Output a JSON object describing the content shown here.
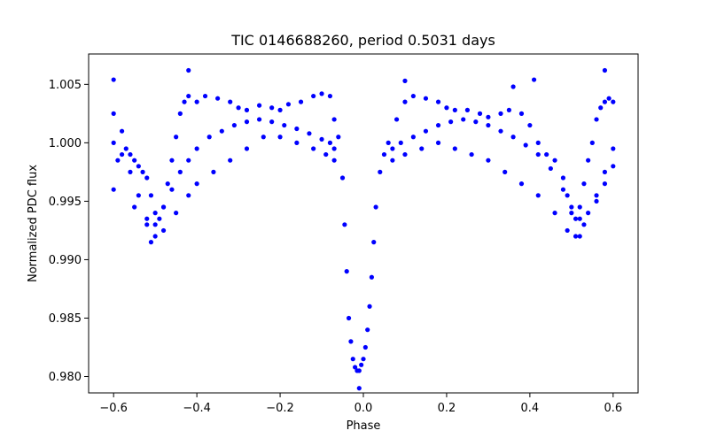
{
  "chart_data": {
    "type": "scatter",
    "title": "TIC 0146688260, period 0.5031 days",
    "xlabel": "Phase",
    "ylabel": "Normalized PDC flux",
    "xlim": [
      -0.66,
      0.66
    ],
    "ylim": [
      0.9786,
      1.0076
    ],
    "xticks": [
      -0.6,
      -0.4,
      -0.2,
      0.0,
      0.2,
      0.4,
      0.6
    ],
    "xtick_labels": [
      "−0.6",
      "−0.4",
      "−0.2",
      "0.0",
      "0.2",
      "0.4",
      "0.6"
    ],
    "yticks": [
      0.98,
      0.985,
      0.99,
      0.995,
      1.0,
      1.005
    ],
    "ytick_labels": [
      "0.980",
      "0.985",
      "0.990",
      "0.995",
      "1.000",
      "1.005"
    ],
    "grid": false,
    "legend": "none",
    "marker_color": "#0000ff",
    "series": [
      {
        "points": [
          [
            -0.6,
            1.0025
          ],
          [
            -0.59,
            0.9985
          ],
          [
            -0.58,
            1.001
          ],
          [
            -0.57,
            0.9995
          ],
          [
            -0.56,
            0.999
          ],
          [
            -0.55,
            0.9985
          ],
          [
            -0.54,
            0.998
          ],
          [
            -0.53,
            0.9975
          ],
          [
            -0.52,
            0.997
          ],
          [
            -0.51,
            0.9955
          ],
          [
            -0.5,
            0.994
          ],
          [
            -0.49,
            0.9935
          ],
          [
            -0.48,
            0.9945
          ],
          [
            -0.47,
            0.9965
          ],
          [
            -0.46,
            0.9985
          ],
          [
            -0.45,
            1.0005
          ],
          [
            -0.44,
            1.0025
          ],
          [
            -0.43,
            1.0035
          ],
          [
            -0.42,
            1.004
          ],
          [
            -0.4,
            1.0035
          ],
          [
            -0.38,
            1.004
          ],
          [
            -0.35,
            1.0038
          ],
          [
            -0.32,
            1.0035
          ],
          [
            -0.3,
            1.003
          ],
          [
            -0.28,
            1.0028
          ],
          [
            -0.25,
            1.0032
          ],
          [
            -0.22,
            1.003
          ],
          [
            -0.2,
            1.0028
          ],
          [
            -0.18,
            1.0033
          ],
          [
            -0.15,
            1.0035
          ],
          [
            -0.12,
            1.004
          ],
          [
            -0.1,
            1.0042
          ],
          [
            -0.08,
            1.004
          ],
          [
            -0.07,
            1.002
          ],
          [
            -0.06,
            1.0005
          ],
          [
            -0.05,
            0.997
          ],
          [
            -0.045,
            0.993
          ],
          [
            -0.04,
            0.989
          ],
          [
            -0.035,
            0.985
          ],
          [
            -0.03,
            0.983
          ],
          [
            -0.025,
            0.9815
          ],
          [
            -0.02,
            0.9808
          ],
          [
            -0.015,
            0.9805
          ],
          [
            -0.01,
            0.9805
          ],
          [
            -0.005,
            0.981
          ],
          [
            0.0,
            0.9815
          ],
          [
            0.005,
            0.9825
          ],
          [
            0.01,
            0.984
          ],
          [
            0.015,
            0.986
          ],
          [
            0.02,
            0.9885
          ],
          [
            0.025,
            0.9915
          ],
          [
            0.03,
            0.9945
          ],
          [
            0.04,
            0.9975
          ],
          [
            0.05,
            0.999
          ],
          [
            0.06,
            1.0
          ],
          [
            0.08,
            1.002
          ],
          [
            0.1,
            1.0035
          ],
          [
            0.12,
            1.004
          ],
          [
            0.15,
            1.0038
          ],
          [
            0.18,
            1.0035
          ],
          [
            0.2,
            1.003
          ],
          [
            0.22,
            1.0028
          ],
          [
            0.25,
            1.0028
          ],
          [
            0.28,
            1.0025
          ],
          [
            0.3,
            1.0022
          ],
          [
            0.33,
            1.0025
          ],
          [
            0.35,
            1.0028
          ],
          [
            0.38,
            1.0025
          ],
          [
            0.4,
            1.0015
          ],
          [
            0.42,
            1.0
          ],
          [
            0.44,
            0.999
          ],
          [
            0.46,
            0.9985
          ],
          [
            0.48,
            0.997
          ],
          [
            0.49,
            0.9955
          ],
          [
            0.5,
            0.994
          ],
          [
            0.51,
            0.9935
          ],
          [
            0.52,
            0.9945
          ],
          [
            0.53,
            0.9965
          ],
          [
            0.54,
            0.9985
          ],
          [
            0.55,
            1.0
          ],
          [
            0.56,
            1.002
          ],
          [
            0.57,
            1.003
          ],
          [
            0.58,
            1.0035
          ],
          [
            0.59,
            1.0038
          ],
          [
            0.6,
            1.0035
          ]
        ]
      },
      {
        "points": [
          [
            -0.6,
            1.0
          ],
          [
            -0.58,
            0.999
          ],
          [
            -0.56,
            0.9975
          ],
          [
            -0.54,
            0.9955
          ],
          [
            -0.52,
            0.9935
          ],
          [
            -0.5,
            0.993
          ],
          [
            -0.48,
            0.9945
          ],
          [
            -0.46,
            0.996
          ],
          [
            -0.44,
            0.9975
          ],
          [
            -0.42,
            0.9985
          ],
          [
            -0.4,
            0.9995
          ],
          [
            -0.37,
            1.0005
          ],
          [
            -0.34,
            1.001
          ],
          [
            -0.31,
            1.0015
          ],
          [
            -0.28,
            1.0018
          ],
          [
            -0.25,
            1.002
          ],
          [
            -0.22,
            1.0018
          ],
          [
            -0.19,
            1.0015
          ],
          [
            -0.16,
            1.0012
          ],
          [
            -0.13,
            1.0008
          ],
          [
            -0.1,
            1.0003
          ],
          [
            -0.08,
            1.0
          ],
          [
            -0.07,
            0.9995
          ],
          [
            0.07,
            0.9995
          ],
          [
            0.09,
            1.0
          ],
          [
            0.12,
            1.0005
          ],
          [
            0.15,
            1.001
          ],
          [
            0.18,
            1.0015
          ],
          [
            0.21,
            1.0018
          ],
          [
            0.24,
            1.002
          ],
          [
            0.27,
            1.0018
          ],
          [
            0.3,
            1.0015
          ],
          [
            0.33,
            1.001
          ],
          [
            0.36,
            1.0005
          ],
          [
            0.39,
            0.9998
          ],
          [
            0.42,
            0.999
          ],
          [
            0.45,
            0.9978
          ],
          [
            0.48,
            0.996
          ],
          [
            0.5,
            0.9945
          ],
          [
            0.52,
            0.9935
          ],
          [
            0.54,
            0.994
          ],
          [
            0.56,
            0.9955
          ],
          [
            0.58,
            0.9975
          ],
          [
            0.6,
            0.9995
          ]
        ]
      },
      {
        "points": [
          [
            -0.6,
            0.996
          ],
          [
            -0.55,
            0.9945
          ],
          [
            -0.52,
            0.993
          ],
          [
            -0.5,
            0.992
          ],
          [
            -0.48,
            0.9925
          ],
          [
            -0.45,
            0.994
          ],
          [
            -0.42,
            0.9955
          ],
          [
            -0.4,
            0.9965
          ],
          [
            -0.36,
            0.9975
          ],
          [
            -0.32,
            0.9985
          ],
          [
            -0.28,
            0.9995
          ],
          [
            -0.24,
            1.0005
          ],
          [
            -0.2,
            1.0005
          ],
          [
            -0.16,
            1.0
          ],
          [
            -0.12,
            0.9995
          ],
          [
            -0.09,
            0.999
          ],
          [
            -0.07,
            0.9985
          ],
          [
            0.07,
            0.9985
          ],
          [
            0.1,
            0.999
          ],
          [
            0.14,
            0.9995
          ],
          [
            0.18,
            1.0
          ],
          [
            0.22,
            0.9995
          ],
          [
            0.26,
            0.999
          ],
          [
            0.3,
            0.9985
          ],
          [
            0.34,
            0.9975
          ],
          [
            0.38,
            0.9965
          ],
          [
            0.42,
            0.9955
          ],
          [
            0.46,
            0.994
          ],
          [
            0.49,
            0.9925
          ],
          [
            0.51,
            0.992
          ],
          [
            0.53,
            0.993
          ],
          [
            0.56,
            0.995
          ],
          [
            0.58,
            0.9965
          ],
          [
            0.6,
            0.998
          ]
        ]
      },
      {
        "points": [
          [
            -0.6,
            1.0054
          ],
          [
            -0.42,
            1.0062
          ],
          [
            0.1,
            1.0053
          ],
          [
            0.36,
            1.0048
          ],
          [
            0.41,
            1.0054
          ],
          [
            0.58,
            1.0062
          ],
          [
            -0.51,
            0.9915
          ],
          [
            0.52,
            0.992
          ],
          [
            -0.01,
            0.979
          ]
        ]
      }
    ]
  }
}
